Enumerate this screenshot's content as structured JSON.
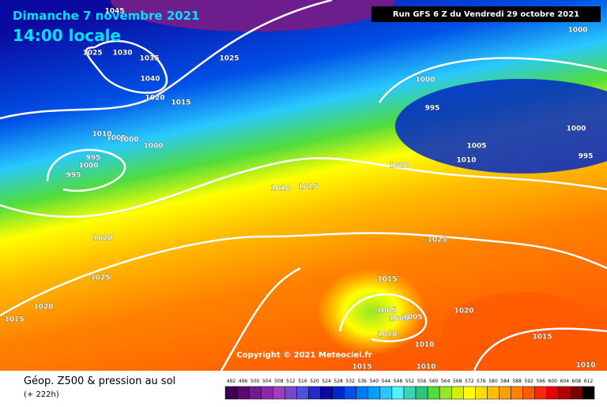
{
  "header": {
    "date": "Dimanche 7 novembre 2021",
    "time": "14:00 locale",
    "run": "Run GFS 6 Z du Vendredi 29 octobre 2021"
  },
  "isobar_labels": [
    "1045",
    "1025",
    "1030",
    "1035",
    "1040",
    "1020",
    "1015",
    "1025",
    "1010",
    "1005",
    "1000",
    "995",
    "1000",
    "995",
    "1000",
    "1010",
    "1015",
    "1020",
    "1000",
    "995",
    "1000",
    "1000",
    "995",
    "1005",
    "1010",
    "1020",
    "1025",
    "1020",
    "1015",
    "1025",
    "1015",
    "1005",
    "1005",
    "1005",
    "1010",
    "1010",
    "1020",
    "1015",
    "1010",
    "1015",
    "1010"
  ],
  "copyright": "Copyright © 2021 Meteociel.fr",
  "legend": {
    "title": "Géop. Z500 & pression au sol",
    "lead": "(+ 222h)",
    "scale_values": [
      492,
      496,
      500,
      504,
      508,
      512,
      516,
      520,
      524,
      528,
      532,
      536,
      540,
      544,
      548,
      552,
      556,
      560,
      564,
      568,
      572,
      576,
      580,
      584,
      588,
      592,
      596,
      600,
      604,
      608,
      612
    ],
    "scale_colors": [
      "#3c0050",
      "#5a0a6e",
      "#6e1e8c",
      "#8c28aa",
      "#a03cbe",
      "#7846c8",
      "#5050dc",
      "#2828c8",
      "#0a0aa0",
      "#0028c8",
      "#0050e6",
      "#0078f0",
      "#00a0ff",
      "#28c8ff",
      "#50f0ff",
      "#3cd2b4",
      "#28c878",
      "#50dc3c",
      "#96e628",
      "#d2f000",
      "#ffff00",
      "#ffdc00",
      "#ffbe00",
      "#ffa000",
      "#ff8200",
      "#ff5a00",
      "#ff2800",
      "#e60000",
      "#b40000",
      "#780000",
      "#000000"
    ]
  }
}
